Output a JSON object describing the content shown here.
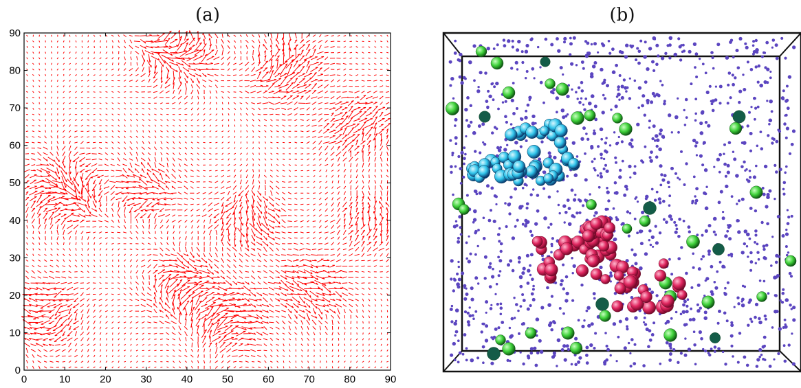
{
  "panels": {
    "a_label": "(a)",
    "b_label": "(b)"
  },
  "chart_data": [
    {
      "type": "quiver",
      "title": "",
      "xlabel": "",
      "ylabel": "",
      "xlim": [
        0,
        90
      ],
      "ylim": [
        0,
        90
      ],
      "x_ticks": [
        0,
        10,
        20,
        30,
        40,
        50,
        60,
        70,
        80,
        90
      ],
      "y_ticks": [
        0,
        10,
        20,
        30,
        40,
        50,
        60,
        70,
        80,
        90
      ],
      "grid": false,
      "arrow_color": "#ff0000",
      "grid_spacing": 1.5,
      "long_arrow_regions": [
        {
          "x": 10,
          "y": 48,
          "strength": 1.0
        },
        {
          "x": 5,
          "y": 15,
          "strength": 0.8
        },
        {
          "x": 38,
          "y": 85,
          "strength": 0.9
        },
        {
          "x": 65,
          "y": 80,
          "strength": 0.8
        },
        {
          "x": 82,
          "y": 65,
          "strength": 0.7
        },
        {
          "x": 50,
          "y": 15,
          "strength": 1.0
        },
        {
          "x": 40,
          "y": 22,
          "strength": 0.9
        },
        {
          "x": 70,
          "y": 22,
          "strength": 0.8
        },
        {
          "x": 55,
          "y": 40,
          "strength": 0.7
        },
        {
          "x": 30,
          "y": 48,
          "strength": 0.6
        },
        {
          "x": 85,
          "y": 40,
          "strength": 0.6
        }
      ]
    },
    {
      "type": "scatter3d",
      "title": "",
      "xlabel": "",
      "ylabel": "",
      "colors": {
        "background_particles": "#5b45c0",
        "isolated_particles": "#3fd13a",
        "cluster_cyan": "#2fc4ea",
        "cluster_magenta": "#e0265f"
      },
      "small_particle_count": 1400,
      "cyan_cluster_count": 60,
      "magenta_cluster_count": 75,
      "green_particle_count": 48
    }
  ]
}
